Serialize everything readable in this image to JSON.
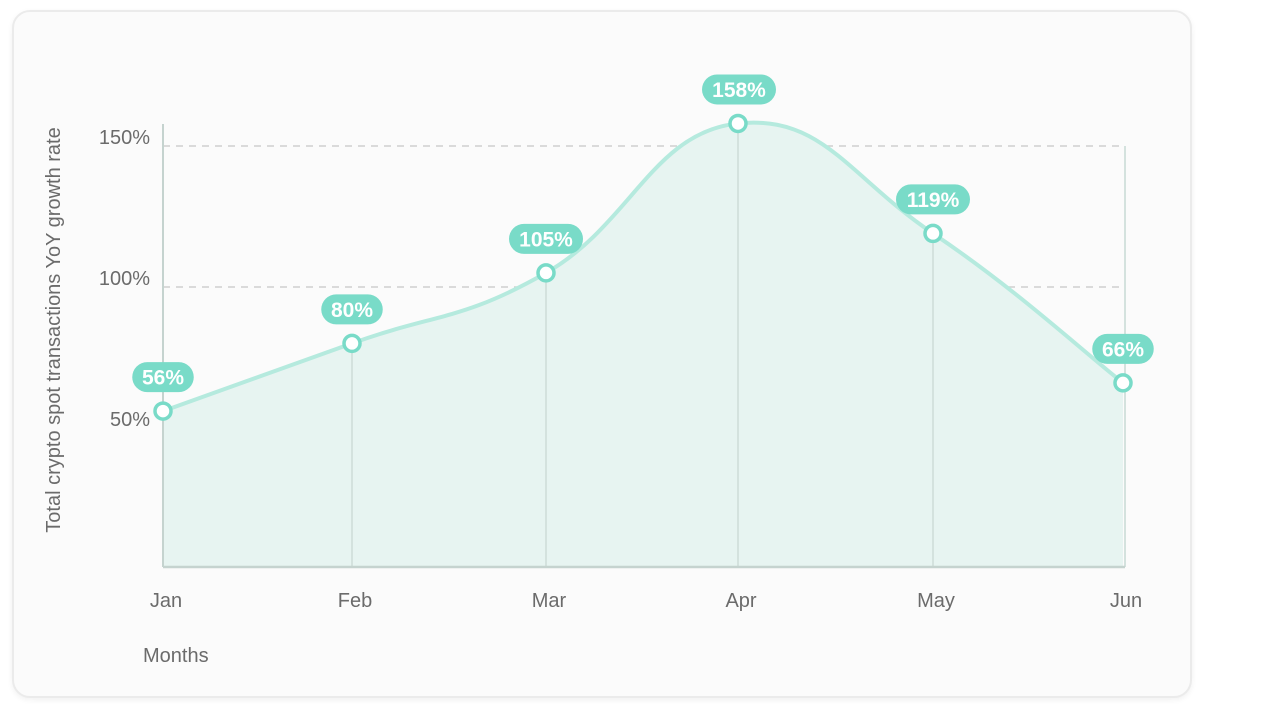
{
  "chart_data": {
    "type": "area",
    "title": "",
    "xlabel": "Months",
    "ylabel": "Total crypto spot transactions YoY growth rate",
    "categories": [
      "Jan",
      "Feb",
      "Mar",
      "Apr",
      "May",
      "Jun"
    ],
    "series": [
      {
        "values": [
          56,
          80,
          105,
          158,
          119,
          66
        ],
        "labels": [
          "56%",
          "80%",
          "105%",
          "158%",
          "119%",
          "66%"
        ]
      }
    ],
    "yticks": [
      {
        "value": 50,
        "label": "50%"
      },
      {
        "value": 100,
        "label": "100%"
      },
      {
        "value": 150,
        "label": "150%"
      }
    ],
    "ylim": [
      0,
      160
    ],
    "grid": "horizontal dashed",
    "legend": "none",
    "colors": {
      "line": "#b5eade",
      "fill": "#e7f4f1",
      "label_bg": "#79dbc8",
      "marker_stroke": "#79dbc8",
      "marker_fill": "#ffffff",
      "grid": "#cfcfcf",
      "drop_line": "#d4e2de",
      "axis": "#c5d3cf"
    }
  }
}
